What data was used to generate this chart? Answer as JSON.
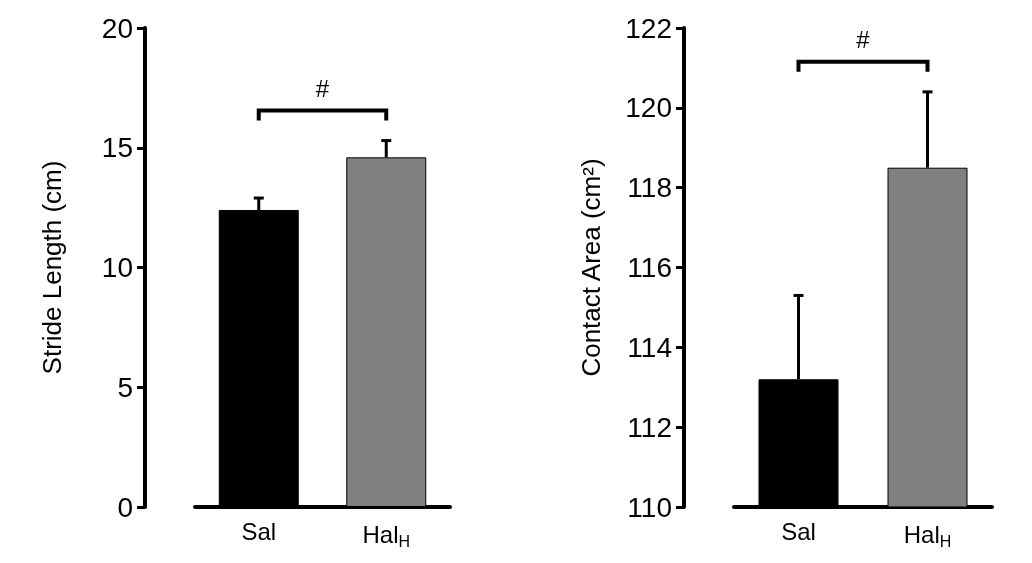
{
  "chart_data": [
    {
      "type": "bar",
      "ylabel": "Stride Length (cm)",
      "categories": [
        "Sal",
        "Hal$_{H}$"
      ],
      "values": [
        12.4,
        14.6
      ],
      "errors": [
        [
          12.4,
          12.9
        ],
        [
          14.6,
          15.3
        ]
      ],
      "colors": [
        "#000000",
        "#808080"
      ],
      "ylim": [
        0,
        20
      ],
      "yticks": [
        0,
        5,
        10,
        15,
        20
      ],
      "annotations": [
        "#"
      ]
    },
    {
      "type": "bar",
      "ylabel": "Contact Area (cm²)",
      "categories": [
        "Sal",
        "Hal$_{H}$"
      ],
      "values": [
        113.2,
        118.5
      ],
      "errors": [
        [
          113.2,
          115.3
        ],
        [
          118.5,
          120.4
        ]
      ],
      "colors": [
        "#000000",
        "#808080"
      ],
      "ylim": [
        110,
        122
      ],
      "yticks": [
        110,
        112,
        114,
        116,
        118,
        120,
        122
      ],
      "annotations": [
        "#"
      ]
    }
  ]
}
